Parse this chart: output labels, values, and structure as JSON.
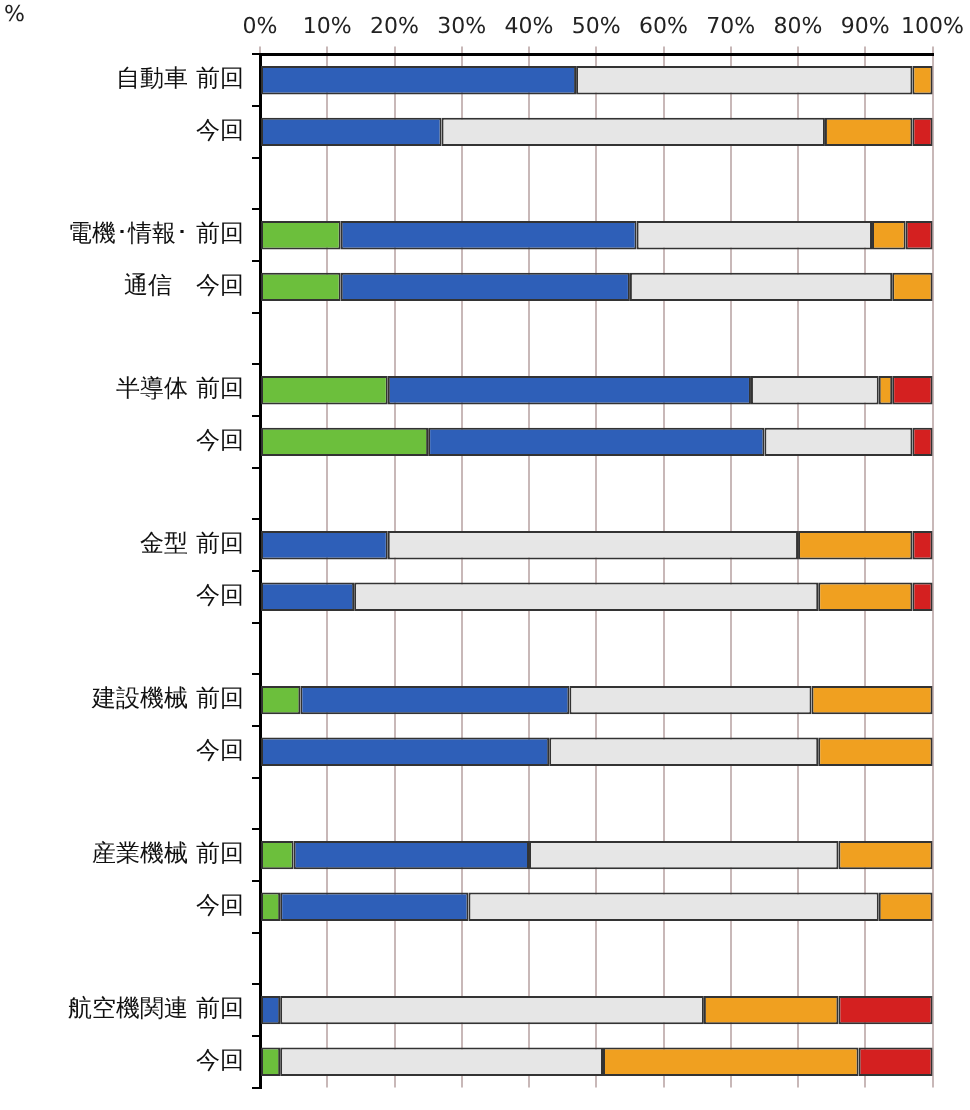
{
  "chart_data": {
    "type": "bar",
    "orientation": "horizontal",
    "stacked": true,
    "categories": [
      "自動車 前回",
      "今回",
      null,
      "電機･情報･ 前回",
      "通信　今回",
      null,
      "半導体 前回",
      "今回",
      null,
      "金型 前回",
      "今回",
      null,
      "建設機械 前回",
      "今回",
      null,
      "産業機械 前回",
      "今回",
      null,
      "航空機関連 前回",
      "今回"
    ],
    "series": [
      {
        "color": "#6cbf3c",
        "values": [
          0,
          0,
          null,
          12,
          12,
          null,
          19,
          25,
          null,
          0,
          0,
          null,
          6,
          0,
          null,
          5,
          3,
          null,
          0,
          3
        ]
      },
      {
        "color": "#2e5fb8",
        "values": [
          47,
          27,
          null,
          44,
          43,
          null,
          54,
          50,
          null,
          19,
          14,
          null,
          40,
          43,
          null,
          35,
          28,
          null,
          3,
          0
        ]
      },
      {
        "color": "#e6e6e6",
        "values": [
          50,
          57,
          null,
          35,
          39,
          null,
          19,
          22,
          null,
          61,
          69,
          null,
          36,
          40,
          null,
          46,
          61,
          null,
          63,
          48
        ]
      },
      {
        "color": "#f0a020",
        "values": [
          3,
          13,
          null,
          5,
          6,
          null,
          2,
          0,
          null,
          17,
          14,
          null,
          18,
          17,
          null,
          14,
          8,
          null,
          20,
          38
        ]
      },
      {
        "color": "#d42020",
        "values": [
          0,
          3,
          null,
          4,
          0,
          null,
          6,
          3,
          null,
          3,
          3,
          null,
          0,
          0,
          null,
          0,
          0,
          null,
          14,
          11
        ]
      }
    ],
    "xlim": [
      0,
      100
    ],
    "xticks": [
      {
        "value": 0,
        "label": "0%"
      },
      {
        "value": 10,
        "label": "10%"
      },
      {
        "value": 20,
        "label": "20%"
      },
      {
        "value": 30,
        "label": "30%"
      },
      {
        "value": 40,
        "label": "40%"
      },
      {
        "value": 50,
        "label": "50%"
      },
      {
        "value": 60,
        "label": "60%"
      },
      {
        "value": 70,
        "label": "70%"
      },
      {
        "value": 80,
        "label": "80%"
      },
      {
        "value": 90,
        "label": "90%"
      },
      {
        "value": 100,
        "label": "100%"
      }
    ],
    "grid": "x",
    "legend": false,
    "annotations": [
      "%"
    ]
  }
}
